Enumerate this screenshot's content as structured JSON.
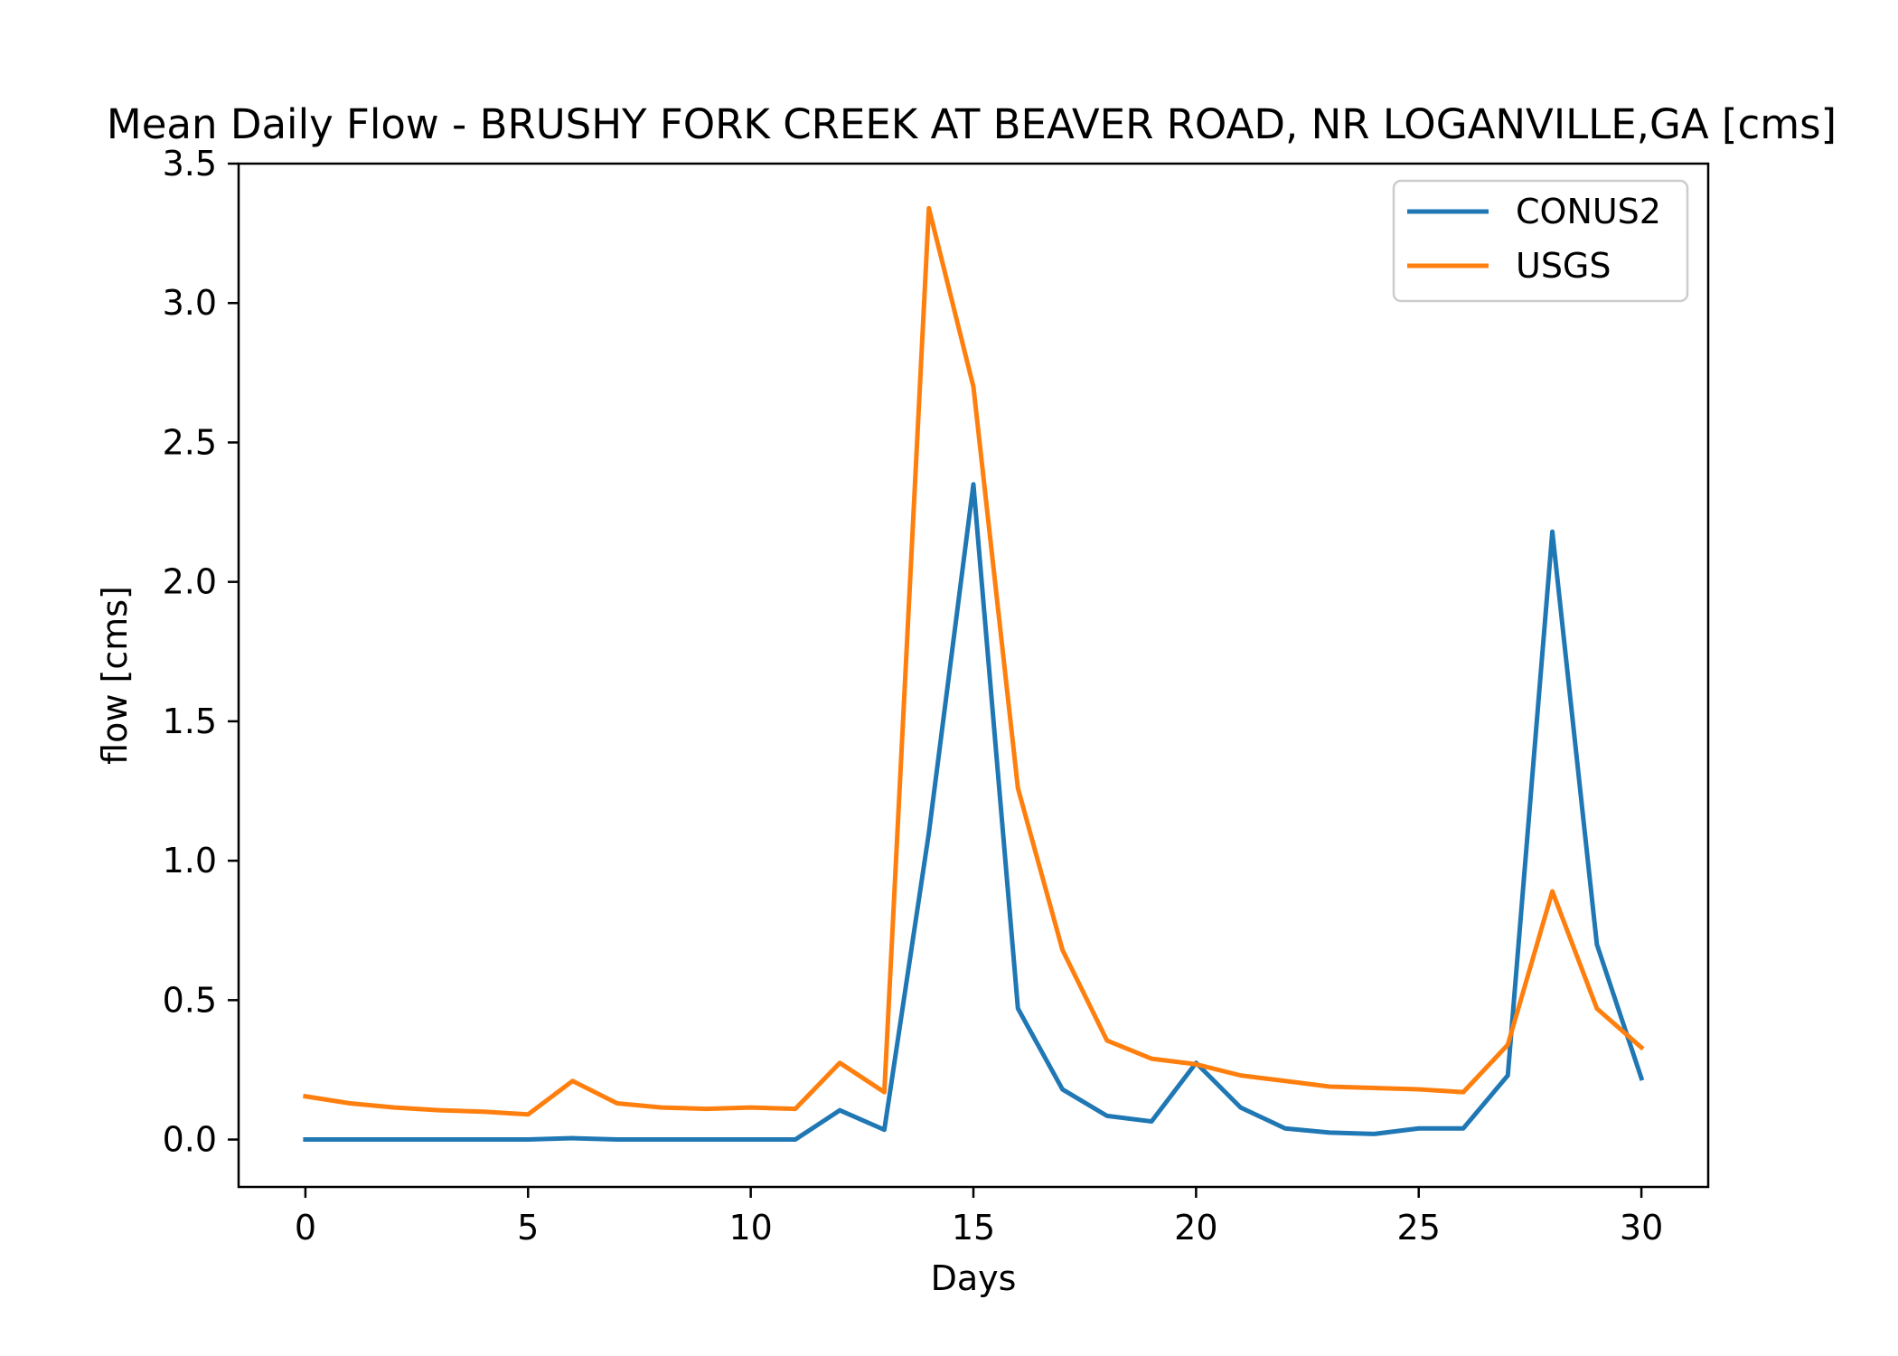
{
  "chart_data": {
    "type": "line",
    "title": "Mean Daily Flow - BRUSHY FORK CREEK AT BEAVER ROAD, NR LOGANVILLE,GA [cms]",
    "xlabel": "Days",
    "ylabel": "flow [cms]",
    "xlim": [
      -1.5,
      31.5
    ],
    "ylim": [
      -0.17,
      3.5
    ],
    "xticks": [
      0,
      5,
      10,
      15,
      20,
      25,
      30
    ],
    "yticks": [
      0.0,
      0.5,
      1.0,
      1.5,
      2.0,
      2.5,
      3.0,
      3.5
    ],
    "ytick_labels": [
      "0.0",
      "0.5",
      "1.0",
      "1.5",
      "2.0",
      "2.5",
      "3.0",
      "3.5"
    ],
    "grid": false,
    "legend_position": "top-right",
    "x": [
      0,
      1,
      2,
      3,
      4,
      5,
      6,
      7,
      8,
      9,
      10,
      11,
      12,
      13,
      14,
      15,
      16,
      17,
      18,
      19,
      20,
      21,
      22,
      23,
      24,
      25,
      26,
      27,
      28,
      29,
      30
    ],
    "series": [
      {
        "name": "CONUS2",
        "color": "#1f77b4",
        "values": [
          0.0,
          0.0,
          0.0,
          0.0,
          0.0,
          0.0,
          0.005,
          0.0,
          0.0,
          0.0,
          0.0,
          0.0,
          0.105,
          0.035,
          1.1,
          2.35,
          0.47,
          0.18,
          0.085,
          0.065,
          0.275,
          0.115,
          0.04,
          0.025,
          0.02,
          0.04,
          0.04,
          0.23,
          2.18,
          0.7,
          0.22
        ]
      },
      {
        "name": "USGS",
        "color": "#ff7f0e",
        "values": [
          0.155,
          0.13,
          0.115,
          0.105,
          0.1,
          0.09,
          0.21,
          0.13,
          0.115,
          0.11,
          0.115,
          0.11,
          0.275,
          0.17,
          3.34,
          2.7,
          1.26,
          0.68,
          0.355,
          0.29,
          0.27,
          0.23,
          0.21,
          0.19,
          0.185,
          0.18,
          0.17,
          0.34,
          0.89,
          0.47,
          0.33
        ]
      }
    ]
  }
}
